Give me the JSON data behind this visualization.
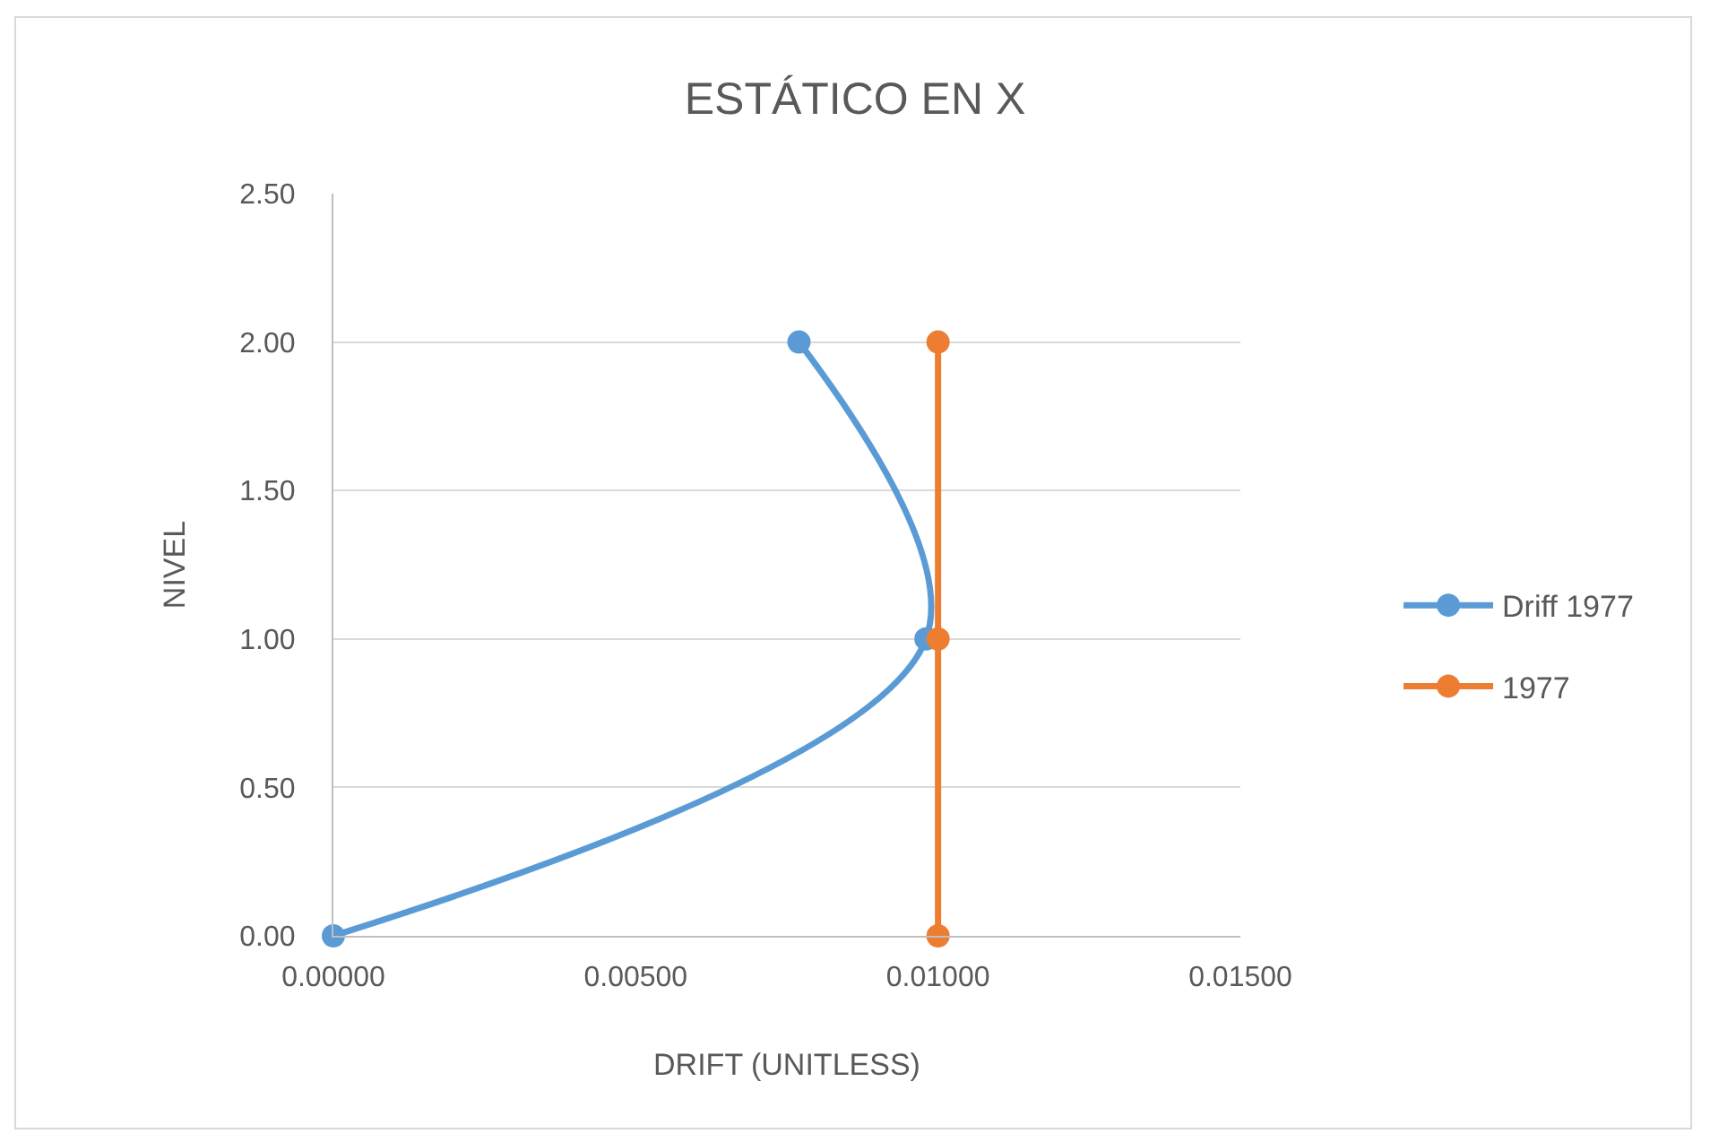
{
  "chart_data": {
    "type": "line",
    "title": "ESTÁTICO EN X",
    "xlabel": "DRIFT (UNITLESS)",
    "ylabel": "NIVEL",
    "series": [
      {
        "name": "Driff 1977",
        "color": "#5b9bd5",
        "x": [
          0,
          0.0098,
          0.0077
        ],
        "values": [
          0,
          1,
          2
        ]
      },
      {
        "name": "1977",
        "color": "#ed7d31",
        "x": [
          0.01,
          0.01,
          0.01
        ],
        "values": [
          0,
          1,
          2
        ]
      }
    ],
    "xlim": [
      0,
      0.015
    ],
    "xticks": [
      {
        "value": 0,
        "label": "0.00000"
      },
      {
        "value": 0.005,
        "label": "0.00500"
      },
      {
        "value": 0.01,
        "label": "0.01000"
      },
      {
        "value": 0.015,
        "label": "0.01500"
      }
    ],
    "ylim": [
      0,
      2.5
    ],
    "yticks": [
      {
        "value": 0,
        "label": "0.00"
      },
      {
        "value": 0.5,
        "label": "0.50"
      },
      {
        "value": 1,
        "label": "1.00"
      },
      {
        "value": 1.5,
        "label": "1.50"
      },
      {
        "value": 2,
        "label": "2.00"
      },
      {
        "value": 2.5,
        "label": "2.50"
      }
    ],
    "grid": "y",
    "legend": "right",
    "marker": "circle",
    "line_style": "solid"
  }
}
